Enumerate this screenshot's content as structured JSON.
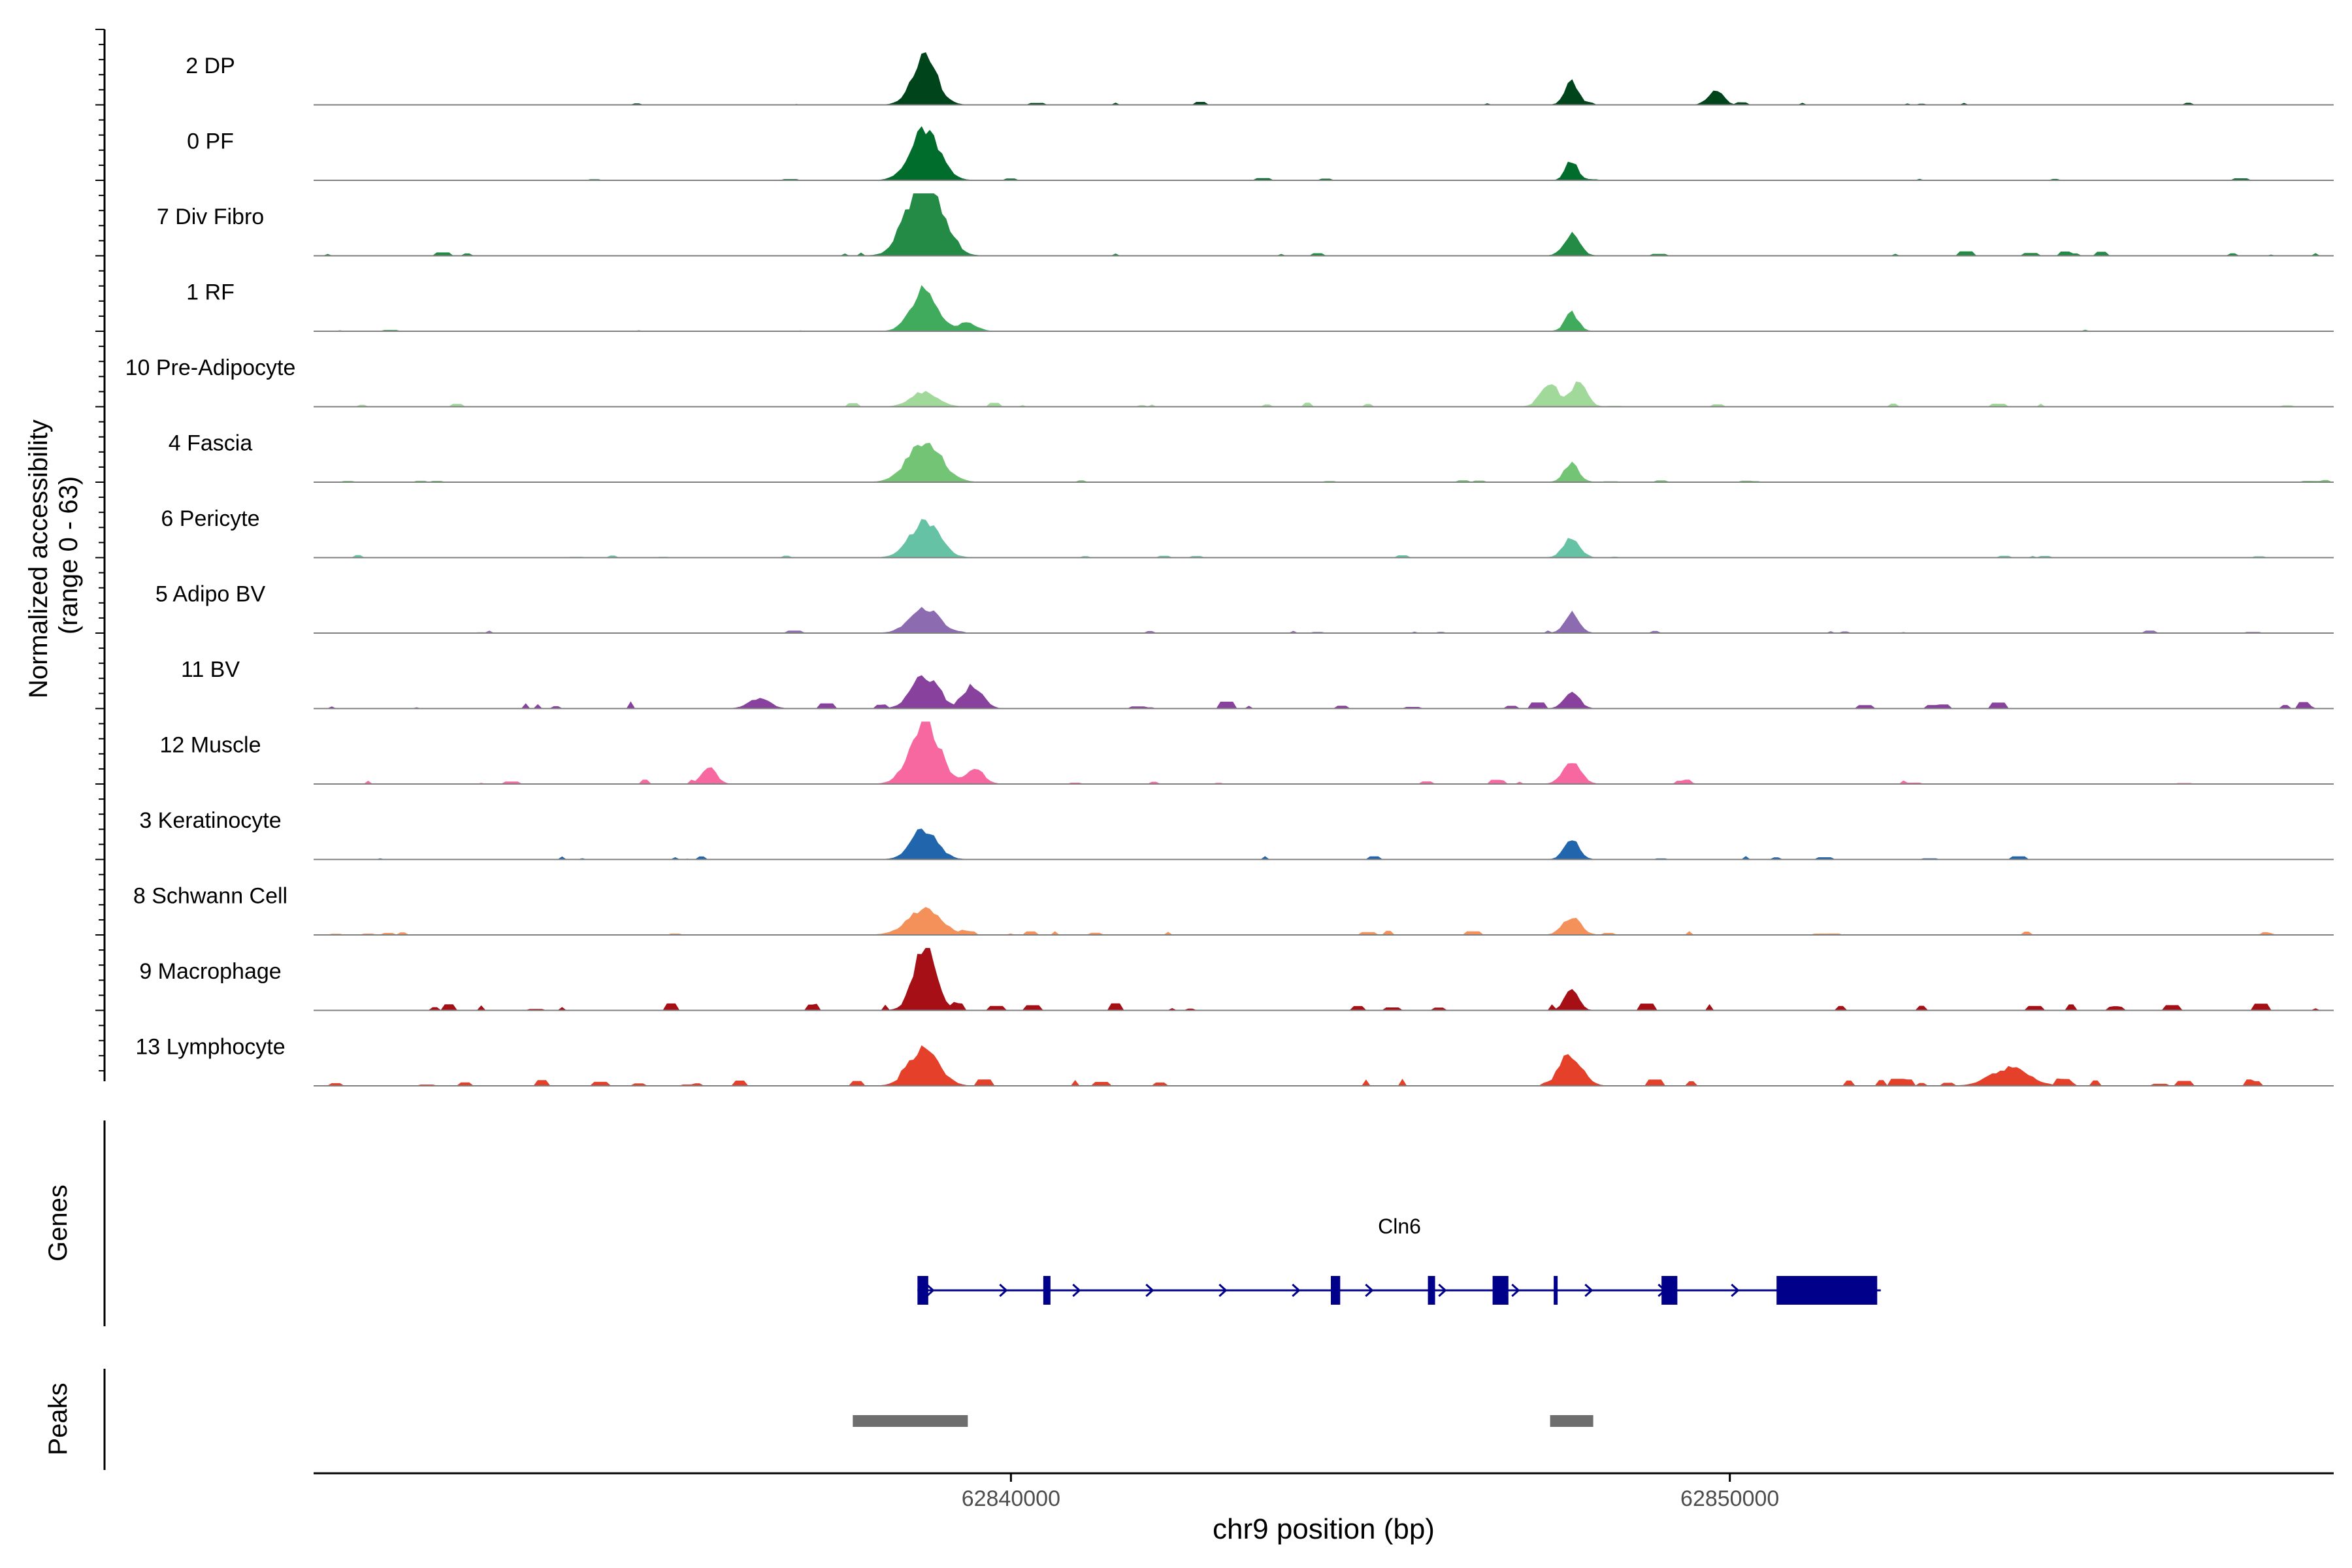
{
  "chart_data": {
    "type": "area",
    "title": "",
    "region": {
      "chrom": "chr9",
      "start": 62830300,
      "end": 62858400
    },
    "xlabel": "chr9 position (bp)",
    "x_ticks": [
      62840000,
      62850000
    ],
    "x_tick_labels": [
      "62840000",
      "62850000"
    ],
    "ylabel_line1": "Normalized accessibility",
    "ylabel_line2": "(range 0 - 63)",
    "y_range": [
      0,
      63
    ],
    "track_max": 33,
    "genes_label": "Genes",
    "peaks_label": "Peaks",
    "series": [
      {
        "name": "2 DP",
        "color": "#00441B",
        "peaks": [
          [
            62838800,
            28,
            170
          ],
          [
            62847800,
            14,
            90
          ],
          [
            62849800,
            9,
            100
          ]
        ],
        "noise": 0.35,
        "seed": 11
      },
      {
        "name": "0 PF",
        "color": "#006D2C",
        "peaks": [
          [
            62838800,
            30,
            200
          ],
          [
            62847800,
            12,
            80
          ]
        ],
        "noise": 0.25,
        "seed": 23
      },
      {
        "name": "7 Div Fibro",
        "color": "#238B45",
        "peaks": [
          [
            62838800,
            48,
            230
          ],
          [
            62847800,
            13,
            110
          ]
        ],
        "noise": 0.55,
        "seed": 37
      },
      {
        "name": "1 RF",
        "color": "#41AB5D",
        "peaks": [
          [
            62838800,
            25,
            180
          ],
          [
            62839400,
            5,
            120
          ],
          [
            62847800,
            11,
            90
          ]
        ],
        "noise": 0.2,
        "seed": 41
      },
      {
        "name": "10 Pre-Adipocyte",
        "color": "#A1D99B",
        "peaks": [
          [
            62838800,
            9,
            180
          ],
          [
            62847500,
            11,
            130
          ],
          [
            62847900,
            14,
            110
          ]
        ],
        "noise": 0.5,
        "seed": 53
      },
      {
        "name": "4 Fascia",
        "color": "#74C476",
        "peaks": [
          [
            62838800,
            24,
            230
          ],
          [
            62847800,
            11,
            100
          ]
        ],
        "noise": 0.25,
        "seed": 67
      },
      {
        "name": "6 Pericyte",
        "color": "#66C2A4",
        "peaks": [
          [
            62838800,
            22,
            200
          ],
          [
            62847800,
            12,
            110
          ]
        ],
        "noise": 0.3,
        "seed": 71
      },
      {
        "name": "5 Adipo BV",
        "color": "#8C6BB1",
        "peaks": [
          [
            62838800,
            15,
            200
          ],
          [
            62847800,
            12,
            100
          ]
        ],
        "noise": 0.3,
        "seed": 83
      },
      {
        "name": "11 BV",
        "color": "#88419D",
        "peaks": [
          [
            62838800,
            20,
            180
          ],
          [
            62839500,
            12,
            120
          ],
          [
            62836500,
            6,
            140
          ],
          [
            62847800,
            11,
            100
          ]
        ],
        "noise": 0.9,
        "seed": 97
      },
      {
        "name": "12 Muscle",
        "color": "#F768A1",
        "peaks": [
          [
            62838800,
            38,
            200
          ],
          [
            62839500,
            8,
            120
          ],
          [
            62835800,
            10,
            100
          ],
          [
            62847800,
            14,
            120
          ]
        ],
        "noise": 0.6,
        "seed": 101
      },
      {
        "name": "3 Keratinocyte",
        "color": "#2166AC",
        "peaks": [
          [
            62838800,
            17,
            180
          ],
          [
            62847800,
            13,
            100
          ]
        ],
        "noise": 0.5,
        "seed": 113
      },
      {
        "name": "8 Schwann Cell",
        "color": "#F4915A",
        "peaks": [
          [
            62838800,
            15,
            230
          ],
          [
            62847800,
            11,
            120
          ]
        ],
        "noise": 0.5,
        "seed": 127
      },
      {
        "name": "9 Macrophage",
        "color": "#A50F15",
        "peaks": [
          [
            62838800,
            38,
            150
          ],
          [
            62847800,
            14,
            90
          ]
        ],
        "noise": 0.9,
        "seed": 131
      },
      {
        "name": "13 Lymphocyte",
        "color": "#E4402A",
        "peaks": [
          [
            62838800,
            22,
            200
          ],
          [
            62847800,
            18,
            150
          ],
          [
            62853900,
            11,
            250
          ]
        ],
        "noise": 0.9,
        "seed": 139
      }
    ],
    "gene": {
      "name": "Cln6",
      "strand": "+",
      "start": 62838700,
      "end": 62852100,
      "color": "#00008B",
      "exons": [
        [
          62838700,
          62838850
        ],
        [
          62840450,
          62840550
        ],
        [
          62844450,
          62844580
        ],
        [
          62845800,
          62845900
        ],
        [
          62846700,
          62846920
        ],
        [
          62847550,
          62847580
        ],
        [
          62849050,
          62849270
        ],
        [
          62850650,
          62852050
        ]
      ]
    },
    "peak_regions": [
      [
        62837800,
        62839400
      ],
      [
        62847500,
        62848100
      ]
    ],
    "peak_color": "#6E6E6E"
  }
}
